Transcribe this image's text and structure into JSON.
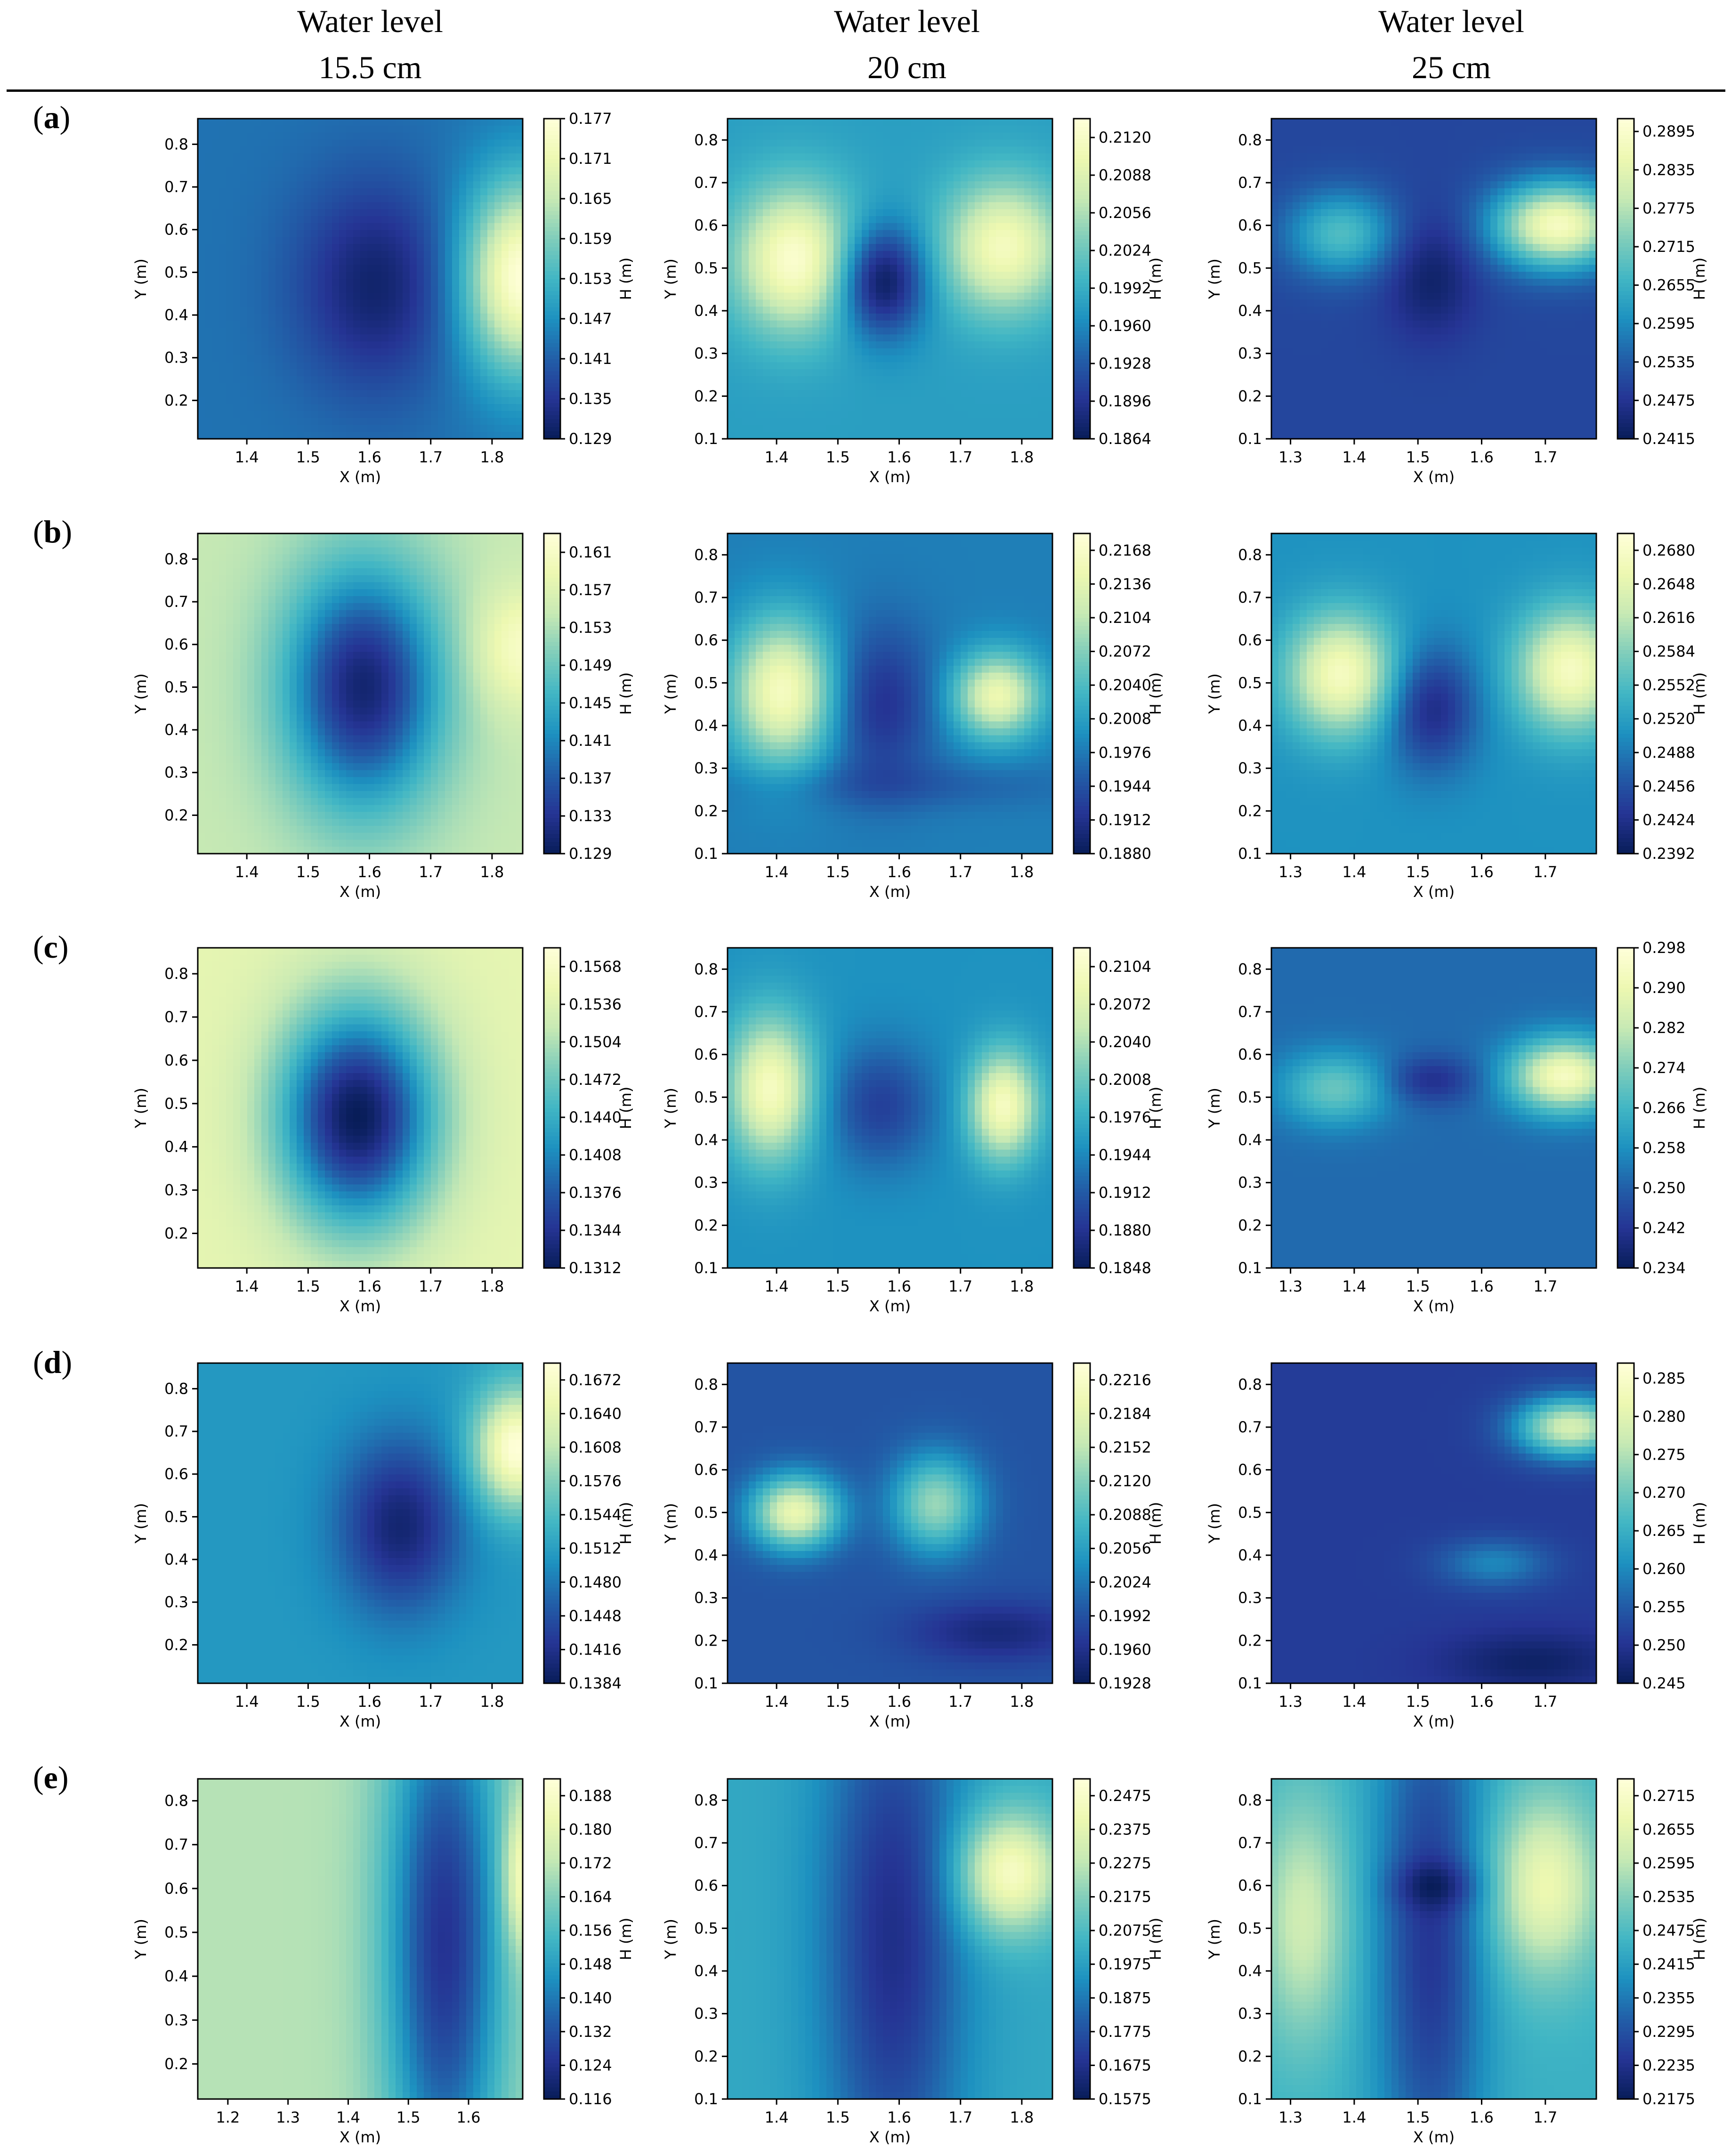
{
  "column_headers": [
    {
      "line1": "Water level",
      "line2": "15.5 cm"
    },
    {
      "line1": "Water level",
      "line2": "20 cm"
    },
    {
      "line1": "Water level",
      "line2": "25 cm"
    }
  ],
  "row_labels": [
    "a",
    "b",
    "c",
    "d",
    "e"
  ],
  "colormap": [
    "#081d58",
    "#253494",
    "#225ea8",
    "#1d91c0",
    "#41b6c4",
    "#7fcdbb",
    "#c7e9b4",
    "#edf8b1",
    "#ffffd9"
  ],
  "chart_data": [
    {
      "type": "heatmap",
      "row": "a",
      "col": 0,
      "xlabel": "X (m)",
      "ylabel": "Y (m)",
      "cbar_label": "H (m)",
      "xlim": [
        1.32,
        1.85
      ],
      "ylim": [
        0.11,
        0.86
      ],
      "xticks": [
        "1.4",
        "1.5",
        "1.6",
        "1.7",
        "1.8"
      ],
      "yticks": [
        "0.2",
        "0.3",
        "0.4",
        "0.5",
        "0.6",
        "0.7",
        "0.8"
      ],
      "cbar_ticks": [
        "0.129",
        "0.135",
        "0.141",
        "0.147",
        "0.153",
        "0.159",
        "0.165",
        "0.171",
        "0.177"
      ],
      "vmin": 0.129,
      "vmax": 0.177,
      "base": 0.3,
      "blobs": [
        {
          "x": 1.61,
          "y": 0.47,
          "sx": 0.09,
          "sy": 0.17,
          "a": -0.26
        },
        {
          "x": 1.85,
          "y": 0.49,
          "sx": 0.07,
          "sy": 0.16,
          "a": 0.7
        }
      ]
    },
    {
      "type": "heatmap",
      "row": "a",
      "col": 1,
      "xlabel": "X (m)",
      "ylabel": "Y (m)",
      "cbar_label": "H (m)",
      "xlim": [
        1.32,
        1.85
      ],
      "ylim": [
        0.1,
        0.85
      ],
      "xticks": [
        "1.4",
        "1.5",
        "1.6",
        "1.7",
        "1.8"
      ],
      "yticks": [
        "0.1",
        "0.2",
        "0.3",
        "0.4",
        "0.5",
        "0.6",
        "0.7",
        "0.8"
      ],
      "cbar_ticks": [
        "0.1864",
        "0.1896",
        "0.1928",
        "0.1960",
        "0.1992",
        "0.2024",
        "0.2056",
        "0.2088",
        "0.2120"
      ],
      "vmin": 0.1864,
      "vmax": 0.2136,
      "base": 0.42,
      "blobs": [
        {
          "x": 1.43,
          "y": 0.52,
          "sx": 0.07,
          "sy": 0.12,
          "a": 0.55
        },
        {
          "x": 1.77,
          "y": 0.55,
          "sx": 0.07,
          "sy": 0.11,
          "a": 0.5
        },
        {
          "x": 1.57,
          "y": 0.47,
          "sx": 0.05,
          "sy": 0.09,
          "a": -0.45
        }
      ]
    },
    {
      "type": "heatmap",
      "row": "a",
      "col": 2,
      "xlabel": "X (m)",
      "ylabel": "Y (m)",
      "cbar_label": "H (m)",
      "xlim": [
        1.27,
        1.78
      ],
      "ylim": [
        0.1,
        0.85
      ],
      "xticks": [
        "1.3",
        "1.4",
        "1.5",
        "1.6",
        "1.7"
      ],
      "yticks": [
        "0.1",
        "0.2",
        "0.3",
        "0.4",
        "0.5",
        "0.6",
        "0.7",
        "0.8"
      ],
      "cbar_ticks": [
        "0.2415",
        "0.2475",
        "0.2535",
        "0.2595",
        "0.2655",
        "0.2715",
        "0.2775",
        "0.2835",
        "0.2895"
      ],
      "vmin": 0.2415,
      "vmax": 0.2915,
      "base": 0.18,
      "blobs": [
        {
          "x": 1.38,
          "y": 0.58,
          "sx": 0.06,
          "sy": 0.07,
          "a": 0.35
        },
        {
          "x": 1.72,
          "y": 0.6,
          "sx": 0.07,
          "sy": 0.07,
          "a": 0.75
        },
        {
          "x": 1.52,
          "y": 0.48,
          "sx": 0.05,
          "sy": 0.1,
          "a": -0.15
        }
      ]
    },
    {
      "type": "heatmap",
      "row": "b",
      "col": 0,
      "xlabel": "X (m)",
      "ylabel": "Y (m)",
      "cbar_label": "H (m)",
      "xlim": [
        1.32,
        1.85
      ],
      "ylim": [
        0.11,
        0.86
      ],
      "xticks": [
        "1.4",
        "1.5",
        "1.6",
        "1.7",
        "1.8"
      ],
      "yticks": [
        "0.2",
        "0.3",
        "0.4",
        "0.5",
        "0.6",
        "0.7",
        "0.8"
      ],
      "cbar_ticks": [
        "0.129",
        "0.133",
        "0.137",
        "0.141",
        "0.145",
        "0.149",
        "0.153",
        "0.157",
        "0.161"
      ],
      "vmin": 0.129,
      "vmax": 0.163,
      "base": 0.75,
      "blobs": [
        {
          "x": 1.59,
          "y": 0.5,
          "sx": 0.09,
          "sy": 0.2,
          "a": -0.7
        },
        {
          "x": 1.85,
          "y": 0.59,
          "sx": 0.06,
          "sy": 0.1,
          "a": 0.2
        }
      ]
    },
    {
      "type": "heatmap",
      "row": "b",
      "col": 1,
      "xlabel": "X (m)",
      "ylabel": "Y (m)",
      "cbar_label": "H (m)",
      "xlim": [
        1.32,
        1.85
      ],
      "ylim": [
        0.1,
        0.85
      ],
      "xticks": [
        "1.4",
        "1.5",
        "1.6",
        "1.7",
        "1.8"
      ],
      "yticks": [
        "0.1",
        "0.2",
        "0.3",
        "0.4",
        "0.5",
        "0.6",
        "0.7",
        "0.8"
      ],
      "cbar_ticks": [
        "0.1880",
        "0.1912",
        "0.1944",
        "0.1976",
        "0.2008",
        "0.2040",
        "0.2072",
        "0.2104",
        "0.2136",
        "0.2168"
      ],
      "vmin": 0.188,
      "vmax": 0.2184,
      "base": 0.33,
      "blobs": [
        {
          "x": 1.41,
          "y": 0.48,
          "sx": 0.06,
          "sy": 0.12,
          "a": 0.6
        },
        {
          "x": 1.76,
          "y": 0.47,
          "sx": 0.05,
          "sy": 0.07,
          "a": 0.55
        },
        {
          "x": 1.57,
          "y": 0.45,
          "sx": 0.06,
          "sy": 0.13,
          "a": -0.22
        },
        {
          "x": 1.6,
          "y": 0.26,
          "sx": 0.2,
          "sy": 0.04,
          "a": -0.08
        }
      ]
    },
    {
      "type": "heatmap",
      "row": "b",
      "col": 2,
      "xlabel": "X (m)",
      "ylabel": "Y (m)",
      "cbar_label": "H (m)",
      "xlim": [
        1.27,
        1.78
      ],
      "ylim": [
        0.1,
        0.85
      ],
      "xticks": [
        "1.3",
        "1.4",
        "1.5",
        "1.6",
        "1.7"
      ],
      "yticks": [
        "0.1",
        "0.2",
        "0.3",
        "0.4",
        "0.5",
        "0.6",
        "0.7",
        "0.8"
      ],
      "cbar_ticks": [
        "0.2392",
        "0.2424",
        "0.2456",
        "0.2488",
        "0.2520",
        "0.2552",
        "0.2584",
        "0.2616",
        "0.2648",
        "0.2680"
      ],
      "vmin": 0.2392,
      "vmax": 0.2696,
      "base": 0.38,
      "blobs": [
        {
          "x": 1.38,
          "y": 0.52,
          "sx": 0.06,
          "sy": 0.1,
          "a": 0.55
        },
        {
          "x": 1.74,
          "y": 0.53,
          "sx": 0.06,
          "sy": 0.1,
          "a": 0.55
        },
        {
          "x": 1.52,
          "y": 0.44,
          "sx": 0.05,
          "sy": 0.1,
          "a": -0.3
        }
      ]
    },
    {
      "type": "heatmap",
      "row": "c",
      "col": 0,
      "xlabel": "X (m)",
      "ylabel": "Y (m)",
      "cbar_label": "H (m)",
      "xlim": [
        1.32,
        1.85
      ],
      "ylim": [
        0.12,
        0.86
      ],
      "xticks": [
        "1.4",
        "1.5",
        "1.6",
        "1.7",
        "1.8"
      ],
      "yticks": [
        "0.2",
        "0.3",
        "0.4",
        "0.5",
        "0.6",
        "0.7",
        "0.8"
      ],
      "cbar_ticks": [
        "0.1312",
        "0.1344",
        "0.1376",
        "0.1408",
        "0.1440",
        "0.1472",
        "0.1504",
        "0.1536",
        "0.1568"
      ],
      "vmin": 0.1312,
      "vmax": 0.1584,
      "base": 0.85,
      "blobs": [
        {
          "x": 1.58,
          "y": 0.47,
          "sx": 0.09,
          "sy": 0.18,
          "a": -0.85
        }
      ]
    },
    {
      "type": "heatmap",
      "row": "c",
      "col": 1,
      "xlabel": "X (m)",
      "ylabel": "Y (m)",
      "cbar_label": "H (m)",
      "xlim": [
        1.32,
        1.85
      ],
      "ylim": [
        0.1,
        0.85
      ],
      "xticks": [
        "1.4",
        "1.5",
        "1.6",
        "1.7",
        "1.8"
      ],
      "yticks": [
        "0.1",
        "0.2",
        "0.3",
        "0.4",
        "0.5",
        "0.6",
        "0.7",
        "0.8"
      ],
      "cbar_ticks": [
        "0.1848",
        "0.1880",
        "0.1912",
        "0.1944",
        "0.1976",
        "0.2008",
        "0.2040",
        "0.2072",
        "0.2104"
      ],
      "vmin": 0.1848,
      "vmax": 0.212,
      "base": 0.38,
      "blobs": [
        {
          "x": 1.39,
          "y": 0.52,
          "sx": 0.05,
          "sy": 0.12,
          "a": 0.55
        },
        {
          "x": 1.77,
          "y": 0.48,
          "sx": 0.04,
          "sy": 0.09,
          "a": 0.55
        },
        {
          "x": 1.57,
          "y": 0.48,
          "sx": 0.06,
          "sy": 0.1,
          "a": -0.22
        }
      ]
    },
    {
      "type": "heatmap",
      "row": "c",
      "col": 2,
      "xlabel": "X (m)",
      "ylabel": "Y (m)",
      "cbar_label": "H (m)",
      "xlim": [
        1.27,
        1.78
      ],
      "ylim": [
        0.1,
        0.85
      ],
      "xticks": [
        "1.3",
        "1.4",
        "1.5",
        "1.6",
        "1.7"
      ],
      "yticks": [
        "0.1",
        "0.2",
        "0.3",
        "0.4",
        "0.5",
        "0.6",
        "0.7",
        "0.8"
      ],
      "cbar_ticks": [
        "0.234",
        "0.242",
        "0.250",
        "0.258",
        "0.266",
        "0.274",
        "0.282",
        "0.290",
        "0.298"
      ],
      "vmin": 0.234,
      "vmax": 0.298,
      "base": 0.28,
      "blobs": [
        {
          "x": 1.73,
          "y": 0.55,
          "sx": 0.06,
          "sy": 0.06,
          "a": 0.65
        },
        {
          "x": 1.37,
          "y": 0.52,
          "sx": 0.06,
          "sy": 0.06,
          "a": 0.3
        },
        {
          "x": 1.52,
          "y": 0.54,
          "sx": 0.05,
          "sy": 0.04,
          "a": -0.18
        }
      ]
    },
    {
      "type": "heatmap",
      "row": "d",
      "col": 0,
      "xlabel": "X (m)",
      "ylabel": "Y (m)",
      "cbar_label": "H (m)",
      "xlim": [
        1.32,
        1.85
      ],
      "ylim": [
        0.11,
        0.86
      ],
      "xticks": [
        "1.4",
        "1.5",
        "1.6",
        "1.7",
        "1.8"
      ],
      "yticks": [
        "0.2",
        "0.3",
        "0.4",
        "0.5",
        "0.6",
        "0.7",
        "0.8"
      ],
      "cbar_ticks": [
        "0.1384",
        "0.1416",
        "0.1448",
        "0.1480",
        "0.1512",
        "0.1544",
        "0.1576",
        "0.1608",
        "0.1640",
        "0.1672"
      ],
      "vmin": 0.1384,
      "vmax": 0.1688,
      "base": 0.4,
      "blobs": [
        {
          "x": 1.65,
          "y": 0.48,
          "sx": 0.07,
          "sy": 0.14,
          "a": -0.35
        },
        {
          "x": 1.84,
          "y": 0.66,
          "sx": 0.05,
          "sy": 0.1,
          "a": 0.6
        }
      ]
    },
    {
      "type": "heatmap",
      "row": "d",
      "col": 1,
      "xlabel": "X (m)",
      "ylabel": "Y (m)",
      "cbar_label": "H (m)",
      "xlim": [
        1.32,
        1.85
      ],
      "ylim": [
        0.1,
        0.85
      ],
      "xticks": [
        "1.4",
        "1.5",
        "1.6",
        "1.7",
        "1.8"
      ],
      "yticks": [
        "0.1",
        "0.2",
        "0.3",
        "0.4",
        "0.5",
        "0.6",
        "0.7",
        "0.8"
      ],
      "cbar_ticks": [
        "0.1928",
        "0.1960",
        "0.1992",
        "0.2024",
        "0.2056",
        "0.2088",
        "0.2120",
        "0.2152",
        "0.2184",
        "0.2216"
      ],
      "vmin": 0.1928,
      "vmax": 0.2232,
      "base": 0.22,
      "blobs": [
        {
          "x": 1.43,
          "y": 0.5,
          "sx": 0.05,
          "sy": 0.06,
          "a": 0.65
        },
        {
          "x": 1.66,
          "y": 0.52,
          "sx": 0.05,
          "sy": 0.08,
          "a": 0.45
        },
        {
          "x": 1.76,
          "y": 0.22,
          "sx": 0.1,
          "sy": 0.05,
          "a": -0.15
        }
      ]
    },
    {
      "type": "heatmap",
      "row": "d",
      "col": 2,
      "xlabel": "X (m)",
      "ylabel": "Y (m)",
      "cbar_label": "H (m)",
      "xlim": [
        1.27,
        1.78
      ],
      "ylim": [
        0.1,
        0.85
      ],
      "xticks": [
        "1.3",
        "1.4",
        "1.5",
        "1.6",
        "1.7"
      ],
      "yticks": [
        "0.1",
        "0.2",
        "0.3",
        "0.4",
        "0.5",
        "0.6",
        "0.7",
        "0.8"
      ],
      "cbar_ticks": [
        "0.245",
        "0.250",
        "0.255",
        "0.260",
        "0.265",
        "0.270",
        "0.275",
        "0.280",
        "0.285"
      ],
      "vmin": 0.245,
      "vmax": 0.287,
      "base": 0.15,
      "blobs": [
        {
          "x": 1.74,
          "y": 0.7,
          "sx": 0.06,
          "sy": 0.05,
          "a": 0.65
        },
        {
          "x": 1.62,
          "y": 0.38,
          "sx": 0.06,
          "sy": 0.04,
          "a": 0.2
        },
        {
          "x": 1.68,
          "y": 0.15,
          "sx": 0.1,
          "sy": 0.05,
          "a": -0.12
        }
      ]
    },
    {
      "type": "heatmap",
      "row": "e",
      "col": 0,
      "xlabel": "X (m)",
      "ylabel": "Y (m)",
      "cbar_label": "H (m)",
      "xlim": [
        1.15,
        1.69
      ],
      "ylim": [
        0.12,
        0.85
      ],
      "xticks": [
        "1.2",
        "1.3",
        "1.4",
        "1.5",
        "1.6"
      ],
      "yticks": [
        "0.2",
        "0.3",
        "0.4",
        "0.5",
        "0.6",
        "0.7",
        "0.8"
      ],
      "cbar_ticks": [
        "0.116",
        "0.124",
        "0.132",
        "0.140",
        "0.148",
        "0.156",
        "0.164",
        "0.172",
        "0.180",
        "0.188"
      ],
      "vmin": 0.116,
      "vmax": 0.192,
      "base": 0.72,
      "blobs": [
        {
          "x": 1.56,
          "y": 0.48,
          "sx": 0.07,
          "sy": 0.45,
          "a": -0.6
        },
        {
          "x": 1.69,
          "y": 0.63,
          "sx": 0.025,
          "sy": 0.12,
          "a": 0.3
        }
      ]
    },
    {
      "type": "heatmap",
      "row": "e",
      "col": 1,
      "xlabel": "X (m)",
      "ylabel": "Y (m)",
      "cbar_label": "H (m)",
      "xlim": [
        1.32,
        1.85
      ],
      "ylim": [
        0.1,
        0.85
      ],
      "xticks": [
        "1.4",
        "1.5",
        "1.6",
        "1.7",
        "1.8"
      ],
      "yticks": [
        "0.1",
        "0.2",
        "0.3",
        "0.4",
        "0.5",
        "0.6",
        "0.7",
        "0.8"
      ],
      "cbar_ticks": [
        "0.1575",
        "0.1675",
        "0.1775",
        "0.1875",
        "0.1975",
        "0.2075",
        "0.2175",
        "0.2275",
        "0.2375",
        "0.2475"
      ],
      "vmin": 0.1575,
      "vmax": 0.2525,
      "base": 0.45,
      "blobs": [
        {
          "x": 1.59,
          "y": 0.48,
          "sx": 0.08,
          "sy": 0.45,
          "a": -0.35
        },
        {
          "x": 1.78,
          "y": 0.63,
          "sx": 0.06,
          "sy": 0.1,
          "a": 0.5
        }
      ]
    },
    {
      "type": "heatmap",
      "row": "e",
      "col": 2,
      "xlabel": "X (m)",
      "ylabel": "Y (m)",
      "cbar_label": "H (m)",
      "xlim": [
        1.27,
        1.78
      ],
      "ylim": [
        0.1,
        0.85
      ],
      "xticks": [
        "1.3",
        "1.4",
        "1.5",
        "1.6",
        "1.7"
      ],
      "yticks": [
        "0.1",
        "0.2",
        "0.3",
        "0.4",
        "0.5",
        "0.6",
        "0.7",
        "0.8"
      ],
      "cbar_ticks": [
        "0.2175",
        "0.2235",
        "0.2295",
        "0.2355",
        "0.2415",
        "0.2475",
        "0.2535",
        "0.2595",
        "0.2655",
        "0.2715"
      ],
      "vmin": 0.2175,
      "vmax": 0.2745,
      "base": 0.48,
      "blobs": [
        {
          "x": 1.52,
          "y": 0.47,
          "sx": 0.06,
          "sy": 0.45,
          "a": -0.35
        },
        {
          "x": 1.53,
          "y": 0.6,
          "sx": 0.05,
          "sy": 0.04,
          "a": -0.15
        },
        {
          "x": 1.7,
          "y": 0.6,
          "sx": 0.06,
          "sy": 0.15,
          "a": 0.4
        },
        {
          "x": 1.32,
          "y": 0.52,
          "sx": 0.05,
          "sy": 0.2,
          "a": 0.3
        }
      ]
    }
  ]
}
